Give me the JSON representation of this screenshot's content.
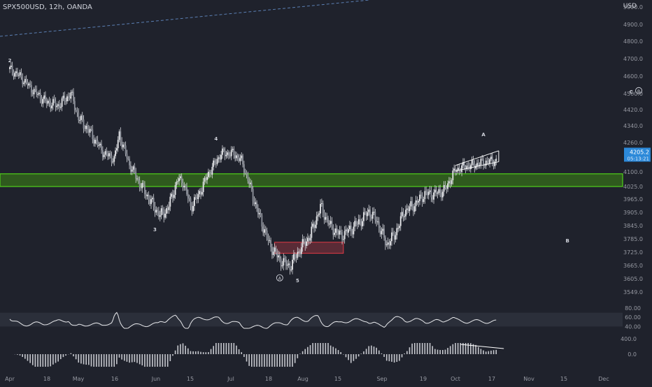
{
  "header": {
    "symbol_line": "SPX500USD, 12h, OANDA",
    "axis_unit": "USD"
  },
  "colors": {
    "background": "#1f222c",
    "candle": "#d7d9de",
    "zone_green": "#4fd01a",
    "zone_green_fill": "#2f5a1e",
    "box_red": "#e03a45",
    "box_red_fill": "#5a2b36",
    "last_price_bg": "#2c89d9",
    "axis_text": "#9598a1",
    "rsi_band": "#2b2f3a"
  },
  "chart_data": {
    "type": "candlestick",
    "instrument": "SPX500USD",
    "timeframe": "12h",
    "source": "OANDA",
    "ylim": [
      3549,
      5100
    ],
    "y_ticks": [
      5000.0,
      4900.0,
      4800.0,
      4700.0,
      4600.0,
      4500.0,
      4420.0,
      4340.0,
      4260.0,
      4100.0,
      4025.0,
      3965.0,
      3905.0,
      3845.0,
      3785.0,
      3725.0,
      3665.0,
      3605.0,
      3549.0
    ],
    "x_ticks": [
      "Apr",
      "18",
      "May",
      "16",
      "Jun",
      "15",
      "Jul",
      "18",
      "Aug",
      "15",
      "Sep",
      "19",
      "Oct",
      "17",
      "Nov",
      "15",
      "Dec"
    ],
    "price_path": [
      [
        "Apr 1",
        4640
      ],
      [
        "Apr 5",
        4600
      ],
      [
        "Apr 10",
        4520
      ],
      [
        "Apr 15",
        4460
      ],
      [
        "Apr 20",
        4440
      ],
      [
        "Apr 25",
        4500
      ],
      [
        "Apr 28",
        4380
      ],
      [
        "May 3",
        4300
      ],
      [
        "May 8",
        4200
      ],
      [
        "May 12",
        4170
      ],
      [
        "May 14",
        4300
      ],
      [
        "May 18",
        4140
      ],
      [
        "May 22",
        4040
      ],
      [
        "May 26",
        3960
      ],
      [
        "May 30",
        3890
      ],
      [
        "Jun 2",
        3920
      ],
      [
        "Jun 6",
        4060
      ],
      [
        "Jun 8",
        4050
      ],
      [
        "Jun 11",
        3930
      ],
      [
        "Jun 14",
        3980
      ],
      [
        "Jun 18",
        4090
      ],
      [
        "Jun 23",
        4200
      ],
      [
        "Jun 28",
        4200
      ],
      [
        "Jul 1",
        4160
      ],
      [
        "Jul 4",
        4040
      ],
      [
        "Jul 7",
        3920
      ],
      [
        "Jul 12",
        3760
      ],
      [
        "Jul 16",
        3690
      ],
      [
        "Jul 20",
        3660
      ],
      [
        "Jul 24",
        3740
      ],
      [
        "Jul 28",
        3800
      ],
      [
        "Aug 1",
        3930
      ],
      [
        "Aug 5",
        3840
      ],
      [
        "Aug 9",
        3800
      ],
      [
        "Aug 13",
        3830
      ],
      [
        "Aug 17",
        3870
      ],
      [
        "Aug 20",
        3910
      ],
      [
        "Aug 23",
        3870
      ],
      [
        "Aug 27",
        3760
      ],
      [
        "Aug 30",
        3800
      ],
      [
        "Sep 3",
        3910
      ],
      [
        "Sep 7",
        3940
      ],
      [
        "Sep 11",
        3990
      ],
      [
        "Sep 15",
        3990
      ],
      [
        "Sep 19",
        4010
      ],
      [
        "Sep 23",
        4110
      ],
      [
        "Sep 27",
        4130
      ],
      [
        "Oct 1",
        4140
      ],
      [
        "Oct 5",
        4155
      ],
      [
        "Oct 9",
        4160
      ]
    ],
    "last_price": "4205.2",
    "countdown": "05:13:21",
    "support_zone": [
      4025,
      4090
    ],
    "box_zone": [
      3720,
      3770
    ],
    "wave_labels": [
      {
        "text": "2",
        "x": "Apr 1",
        "y": 4680
      },
      {
        "text": "4",
        "x": "Jun 21",
        "y": 4270
      },
      {
        "text": "3",
        "x": "May 28",
        "y": 3820
      },
      {
        "text": "5",
        "x": "Jul 23",
        "y": 3590
      },
      {
        "text": "A",
        "x": "Jul 16",
        "y": 3600,
        "circled": true
      },
      {
        "text": "A",
        "x": "Oct 4",
        "y": 4290
      },
      {
        "text": "B",
        "x": "Nov 6",
        "y": 3770
      },
      {
        "text": "C",
        "x": "Nov 31",
        "y": 4500
      },
      {
        "text": "B",
        "x": "Dec 4",
        "y": 4505,
        "circled": true
      }
    ],
    "indicator_rsi": {
      "ylim": [
        30,
        80
      ],
      "ticks": [
        80.0,
        60.0,
        40.0
      ],
      "band": [
        40,
        70
      ]
    },
    "indicator_osc": {
      "ticks": [
        400.0,
        0.0
      ]
    },
    "grid": false
  }
}
